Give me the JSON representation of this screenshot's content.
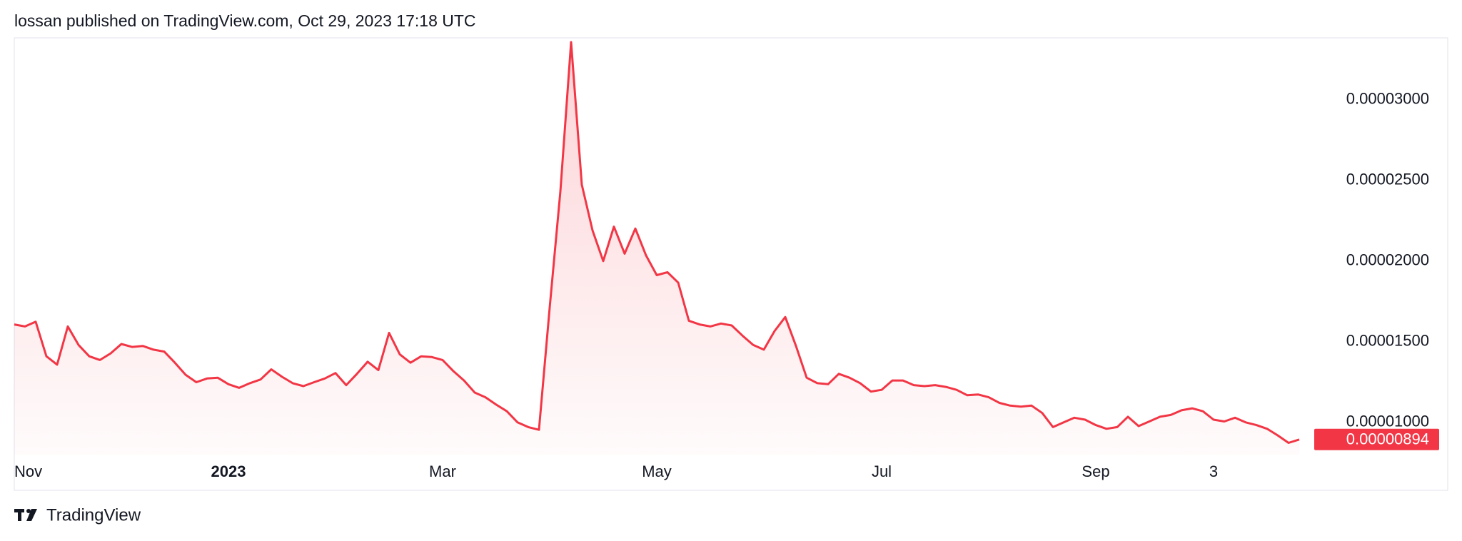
{
  "header": {
    "text": "lossan published on TradingView.com, Oct 29, 2023 17:18 UTC"
  },
  "footer": {
    "brand": "TradingView"
  },
  "chart_data": {
    "type": "line",
    "categories": [
      "Nov",
      null,
      null,
      null,
      null,
      null,
      null,
      null,
      null,
      null,
      null,
      null,
      null,
      null,
      null,
      null,
      null,
      null,
      null,
      null,
      "2023",
      null,
      null,
      null,
      null,
      null,
      null,
      null,
      null,
      null,
      null,
      null,
      null,
      null,
      null,
      null,
      null,
      null,
      null,
      null,
      "Mar",
      null,
      null,
      null,
      null,
      null,
      null,
      null,
      null,
      null,
      null,
      null,
      null,
      null,
      null,
      null,
      null,
      null,
      null,
      null,
      "May",
      null,
      null,
      null,
      null,
      null,
      null,
      null,
      null,
      null,
      null,
      null,
      null,
      null,
      null,
      null,
      null,
      null,
      null,
      null,
      null,
      "Jul",
      null,
      null,
      null,
      null,
      null,
      null,
      null,
      null,
      null,
      null,
      null,
      null,
      null,
      null,
      null,
      null,
      null,
      null,
      null,
      "Sep",
      null,
      null,
      null,
      null,
      null,
      null,
      null,
      null,
      null,
      null,
      "3",
      null,
      null,
      null,
      null,
      null,
      null,
      null,
      null
    ],
    "series": [
      {
        "color": "#f23645",
        "values": [
          1.607e-05,
          1.595e-05,
          1.624e-05,
          1.41e-05,
          1.358e-05,
          1.595e-05,
          1.48e-05,
          1.41e-05,
          1.387e-05,
          1.428e-05,
          1.486e-05,
          1.468e-05,
          1.474e-05,
          1.451e-05,
          1.439e-05,
          1.37e-05,
          1.295e-05,
          1.249e-05,
          1.272e-05,
          1.277e-05,
          1.237e-05,
          1.214e-05,
          1.243e-05,
          1.266e-05,
          1.329e-05,
          1.283e-05,
          1.243e-05,
          1.225e-05,
          1.249e-05,
          1.272e-05,
          1.306e-05,
          1.231e-05,
          1.301e-05,
          1.376e-05,
          1.324e-05,
          1.555e-05,
          1.422e-05,
          1.37e-05,
          1.41e-05,
          1.405e-05,
          1.387e-05,
          1.318e-05,
          1.26e-05,
          1.185e-05,
          1.156e-05,
          1.11e-05,
          1.069e-05,
          1e-05,
          9.71e-06,
          9.54e-06,
          1.711e-05,
          2.433e-05,
          3.358e-05,
          2.474e-05,
          2.191e-05,
          2e-05,
          2.214e-05,
          2.046e-05,
          2.202e-05,
          2.035e-05,
          1.913e-05,
          1.931e-05,
          1.867e-05,
          1.63e-05,
          1.607e-05,
          1.595e-05,
          1.613e-05,
          1.601e-05,
          1.538e-05,
          1.48e-05,
          1.451e-05,
          1.566e-05,
          1.653e-05,
          1.474e-05,
          1.277e-05,
          1.243e-05,
          1.237e-05,
          1.301e-05,
          1.277e-05,
          1.243e-05,
          1.191e-05,
          1.202e-05,
          1.26e-05,
          1.26e-05,
          1.231e-05,
          1.225e-05,
          1.231e-05,
          1.22e-05,
          1.202e-05,
          1.168e-05,
          1.173e-05,
          1.156e-05,
          1.121e-05,
          1.104e-05,
          1.098e-05,
          1.104e-05,
          1.058e-05,
          9.71e-06,
          1e-05,
          1.029e-05,
          1.017e-05,
          9.83e-06,
          9.6e-06,
          9.71e-06,
          1.035e-05,
          9.77e-06,
          1.006e-05,
          1.035e-05,
          1.046e-05,
          1.075e-05,
          1.087e-05,
          1.069e-05,
          1.017e-05,
          1.006e-05,
          1.029e-05,
          1e-05,
          9.83e-06,
          9.6e-06,
          9.19e-06,
          8.73e-06,
          8.94e-06
        ],
        "value_labels": [
          null,
          null,
          null,
          null,
          null,
          null,
          null,
          null,
          null,
          null,
          null,
          null,
          null,
          null,
          null,
          null,
          null,
          null,
          null,
          null,
          null,
          null,
          null,
          null,
          null,
          null,
          null,
          null,
          null,
          null,
          null,
          null,
          null,
          null,
          null,
          null,
          null,
          null,
          null,
          null,
          null,
          null,
          null,
          null,
          null,
          null,
          null,
          null,
          null,
          null,
          null,
          null,
          null,
          null,
          null,
          null,
          null,
          null,
          null,
          null,
          null,
          null,
          null,
          null,
          null,
          null,
          null,
          null,
          null,
          null,
          null,
          null,
          null,
          null,
          null,
          null,
          null,
          null,
          null,
          null,
          null,
          null,
          null,
          null,
          null,
          null,
          null,
          null,
          null,
          null,
          null,
          null,
          null,
          null,
          null,
          null,
          null,
          null,
          null,
          null,
          null,
          null,
          null,
          null,
          null,
          null,
          null,
          null,
          null,
          null,
          null,
          null,
          null,
          null,
          null,
          null,
          null,
          null,
          null,
          null,
          "0.00000894"
        ]
      }
    ],
    "ylim": [
      8e-06,
      3.38e-05
    ],
    "yticks": [
      {
        "value": 1e-05,
        "label": "0.00001000"
      },
      {
        "value": 1.5e-05,
        "label": "0.00001500"
      },
      {
        "value": 2e-05,
        "label": "0.00002000"
      },
      {
        "value": 2.5e-05,
        "label": "0.00002500"
      },
      {
        "value": 3e-05,
        "label": "0.00003000"
      }
    ],
    "grid": false
  }
}
